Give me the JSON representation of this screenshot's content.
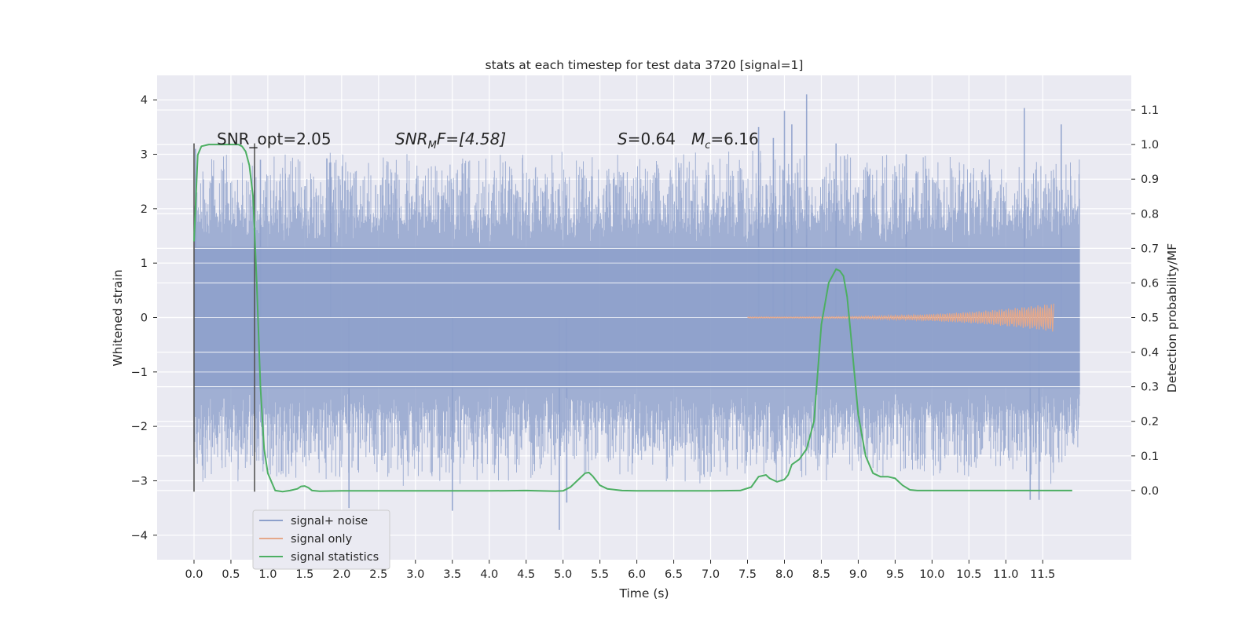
{
  "chart_data": {
    "type": "line",
    "title": "stats at each timestep for test data 3720 [signal=1]",
    "xlabel": "Time (s)",
    "ylabel_left": "Whitened strain",
    "ylabel_right": "Detection probability/MF",
    "xlim": [
      -0.5,
      12.7
    ],
    "ylim_left": [
      -4.45,
      4.45
    ],
    "ylim_right": [
      -0.2,
      1.2
    ],
    "grid": true,
    "legend_placement": "lower left",
    "x_ticks": [
      "0.0",
      "0.5",
      "1.0",
      "1.5",
      "2.0",
      "2.5",
      "3.0",
      "3.5",
      "4.0",
      "4.5",
      "5.0",
      "5.5",
      "6.0",
      "6.5",
      "7.0",
      "7.5",
      "8.0",
      "8.5",
      "9.0",
      "9.5",
      "10.0",
      "10.5",
      "11.0",
      "11.5"
    ],
    "y_ticks_left": [
      -4,
      -3,
      -2,
      -1,
      0,
      1,
      2,
      3,
      4
    ],
    "y_ticks_right": [
      "0.0",
      "0.1",
      "0.2",
      "0.3",
      "0.4",
      "0.5",
      "0.6",
      "0.7",
      "0.8",
      "0.9",
      "1.0",
      "1.1"
    ],
    "annotations": {
      "snr_opt": "SNR_opt=2.05",
      "snr_mf_sym": "SNR",
      "snr_mf_sub": "M",
      "snr_mf_rest": "F=[4.58]",
      "s_sym": "S",
      "s_val": "=0.64",
      "mc_sym": "M",
      "mc_sub": "c",
      "mc_val": "=6.16"
    },
    "vertical_markers": [
      {
        "x": 0.0,
        "y_range": [
          -3.2,
          3.2
        ]
      },
      {
        "x": 0.82,
        "y_range": [
          -3.2,
          3.2
        ]
      }
    ],
    "series": [
      {
        "name": "signal+ noise",
        "axis": "left",
        "color": "#8da0cb",
        "x_range": [
          0.0,
          12.0
        ],
        "core_amplitude": 1.3,
        "typical_peak": 2.0,
        "peaks": [
          {
            "x": 0.02,
            "y": 3.1
          },
          {
            "x": 0.9,
            "y": 2.9
          },
          {
            "x": 1.85,
            "y": 2.85
          },
          {
            "x": 2.1,
            "y": -3.5
          },
          {
            "x": 3.5,
            "y": -3.55
          },
          {
            "x": 4.95,
            "y": -3.9
          },
          {
            "x": 5.05,
            "y": -3.4
          },
          {
            "x": 7.65,
            "y": 3.5
          },
          {
            "x": 7.85,
            "y": 3.3
          },
          {
            "x": 8.0,
            "y": 3.8
          },
          {
            "x": 8.1,
            "y": 3.55
          },
          {
            "x": 8.3,
            "y": 4.1
          },
          {
            "x": 8.7,
            "y": 3.2
          },
          {
            "x": 9.65,
            "y": 3.0
          },
          {
            "x": 11.25,
            "y": 3.85
          },
          {
            "x": 11.33,
            "y": -3.35
          },
          {
            "x": 11.45,
            "y": -3.35
          },
          {
            "x": 11.75,
            "y": 3.55
          }
        ]
      },
      {
        "name": "signal only",
        "axis": "left",
        "color": "#e5a88a",
        "x_range": [
          7.5,
          11.65
        ],
        "max_amplitude": 0.25
      },
      {
        "name": "signal statistics",
        "axis": "right",
        "color": "#4daf63",
        "x": [
          0.0,
          0.05,
          0.1,
          0.2,
          0.3,
          0.4,
          0.5,
          0.6,
          0.65,
          0.7,
          0.75,
          0.8,
          0.85,
          0.9,
          0.95,
          1.0,
          1.1,
          1.2,
          1.3,
          1.4,
          1.45,
          1.5,
          1.55,
          1.6,
          1.7,
          2.0,
          3.0,
          4.0,
          4.5,
          4.9,
          5.0,
          5.1,
          5.2,
          5.3,
          5.35,
          5.4,
          5.5,
          5.6,
          5.8,
          6.0,
          6.5,
          7.0,
          7.4,
          7.55,
          7.65,
          7.75,
          7.8,
          7.85,
          7.9,
          8.0,
          8.05,
          8.1,
          8.2,
          8.3,
          8.4,
          8.5,
          8.6,
          8.7,
          8.75,
          8.8,
          8.85,
          8.9,
          9.0,
          9.1,
          9.2,
          9.3,
          9.4,
          9.5,
          9.6,
          9.7,
          9.8,
          10.0,
          10.5,
          11.0,
          11.5,
          11.9
        ],
        "y": [
          0.72,
          0.97,
          0.995,
          1.0,
          1.0,
          1.0,
          1.0,
          1.0,
          0.995,
          0.98,
          0.94,
          0.85,
          0.6,
          0.3,
          0.12,
          0.05,
          0.0,
          -0.003,
          0.0,
          0.005,
          0.012,
          0.013,
          0.008,
          0.0,
          -0.002,
          -0.001,
          -0.001,
          -0.001,
          0.0,
          -0.002,
          -0.001,
          0.01,
          0.03,
          0.05,
          0.052,
          0.042,
          0.015,
          0.005,
          0.0,
          -0.001,
          -0.001,
          -0.001,
          0.0,
          0.01,
          0.04,
          0.045,
          0.035,
          0.03,
          0.025,
          0.032,
          0.045,
          0.075,
          0.09,
          0.12,
          0.2,
          0.48,
          0.6,
          0.64,
          0.635,
          0.62,
          0.56,
          0.45,
          0.22,
          0.1,
          0.05,
          0.04,
          0.04,
          0.035,
          0.015,
          0.002,
          0.0,
          0.0,
          0.0,
          0.0,
          0.0,
          0.0
        ]
      }
    ]
  }
}
